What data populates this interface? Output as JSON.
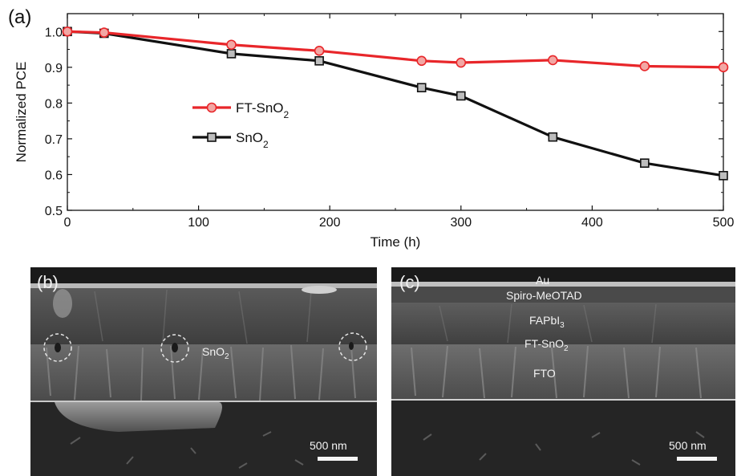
{
  "panel_a_label": "(a)",
  "chart_data": {
    "type": "line",
    "xlabel": "Time (h)",
    "ylabel": "Normalized PCE",
    "xlim": [
      0,
      500
    ],
    "ylim": [
      0.5,
      1.05
    ],
    "xticks": [
      0,
      100,
      200,
      300,
      400,
      500
    ],
    "yticks": [
      0.5,
      0.6,
      0.7,
      0.8,
      0.9,
      1.0
    ],
    "ytick_labels": [
      "0.5",
      "0.6",
      "0.7",
      "0.8",
      "0.9",
      "1.0"
    ],
    "grid": false,
    "legend_position": "center-left",
    "series": [
      {
        "name": "FT-SnO2",
        "name_base": "FT-SnO",
        "name_sub": "2",
        "marker": "circle",
        "color": "#e8262a",
        "marker_fill": "#f2a7a4",
        "x": [
          0,
          28,
          125,
          192,
          270,
          300,
          370,
          440,
          500
        ],
        "y": [
          1.0,
          0.997,
          0.963,
          0.946,
          0.918,
          0.913,
          0.92,
          0.903,
          0.9
        ]
      },
      {
        "name": "SnO2",
        "name_base": "SnO",
        "name_sub": "2",
        "marker": "square",
        "color": "#111111",
        "marker_fill": "#bdbdbd",
        "x": [
          0,
          28,
          125,
          192,
          270,
          300,
          370,
          440,
          500
        ],
        "y": [
          1.0,
          0.995,
          0.938,
          0.918,
          0.843,
          0.82,
          0.705,
          0.632,
          0.597
        ]
      }
    ]
  },
  "panel_b": {
    "label": "(b)",
    "layer_label_base": "SnO",
    "layer_label_sub": "2",
    "scalebar": "500 nm"
  },
  "panel_c": {
    "label": "(c)",
    "layers": {
      "au": "Au",
      "spiro": "Spiro-MeOTAD",
      "fapbi_base": "FAPbI",
      "fapbi_sub": "3",
      "ftsno2_base": "FT-SnO",
      "ftsno2_sub": "2",
      "fto": "FTO"
    },
    "scalebar": "500 nm"
  }
}
